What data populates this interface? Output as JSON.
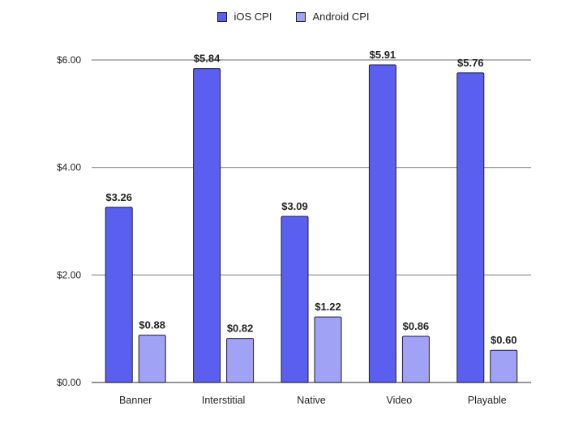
{
  "chart_data": {
    "type": "bar",
    "categories": [
      "Banner",
      "Interstitial",
      "Native",
      "Video",
      "Playable"
    ],
    "series": [
      {
        "name": "iOS CPI",
        "color": "#5a5ff0",
        "values": [
          3.26,
          5.84,
          3.09,
          5.91,
          5.76
        ]
      },
      {
        "name": "Android CPI",
        "color": "#a0a2f5",
        "values": [
          0.88,
          0.82,
          1.22,
          0.86,
          0.6
        ]
      }
    ],
    "data_labels": [
      [
        "$3.26",
        "$5.84",
        "$3.09",
        "$5.91",
        "$5.76"
      ],
      [
        "$0.88",
        "$0.82",
        "$1.22",
        "$0.86",
        "$0.60"
      ]
    ],
    "yticks": [
      0,
      2,
      4,
      6
    ],
    "ytick_labels": [
      "$0.00",
      "$2.00",
      "$4.00",
      "$6.00"
    ],
    "ylim": [
      0,
      6
    ],
    "grid": true,
    "legend_position": "top-center"
  }
}
